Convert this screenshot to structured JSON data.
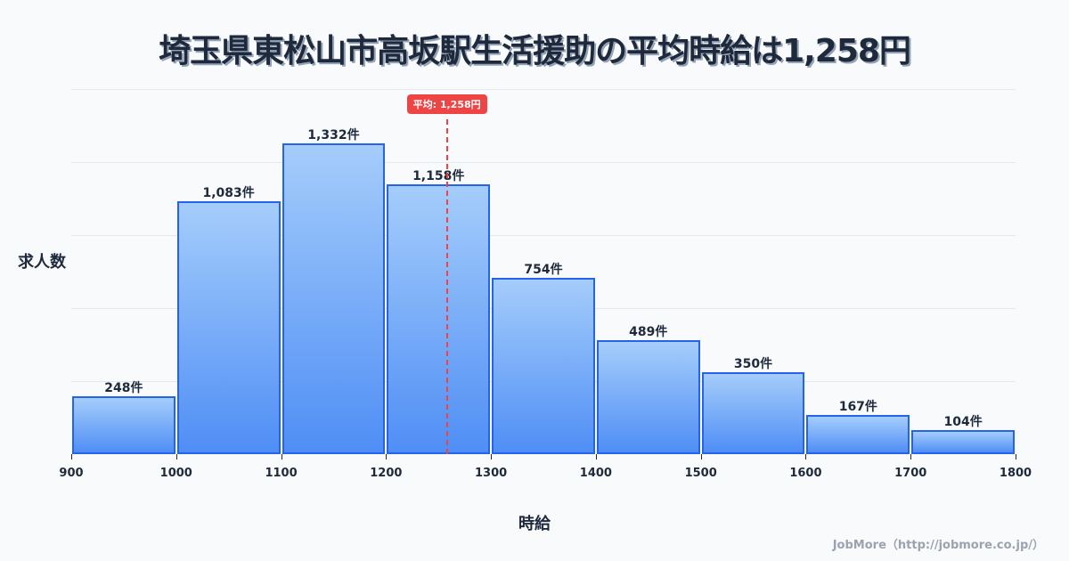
{
  "title": "埼玉県東松山市高坂駅生活援助の平均時給は1,258円",
  "ylabel": "求人数",
  "xlabel": "時給",
  "credit": "JobMore（http://jobmore.co.jp/）",
  "average": {
    "label": "平均: 1,258円",
    "value": 1258
  },
  "colors": {
    "bar_border": "#2563eb",
    "bar_top": "#a5cdfb",
    "bar_bottom": "#4f8ef5",
    "average": "#ef4444",
    "text": "#1e293b"
  },
  "chart_data": {
    "type": "bar",
    "title": "埼玉県東松山市高坂駅生活援助の平均時給は1,258円",
    "xlabel": "時給",
    "ylabel": "求人数",
    "bins": [
      [
        900,
        1000
      ],
      [
        1000,
        1100
      ],
      [
        1100,
        1200
      ],
      [
        1200,
        1300
      ],
      [
        1300,
        1400
      ],
      [
        1400,
        1500
      ],
      [
        1500,
        1600
      ],
      [
        1600,
        1700
      ],
      [
        1700,
        1800
      ]
    ],
    "categories": [
      "900-1000",
      "1000-1100",
      "1100-1200",
      "1200-1300",
      "1300-1400",
      "1400-1500",
      "1500-1600",
      "1600-1700",
      "1700-1800"
    ],
    "values": [
      248,
      1083,
      1332,
      1158,
      754,
      489,
      350,
      167,
      104
    ],
    "value_labels": [
      "248件",
      "1,083件",
      "1,332件",
      "1,158件",
      "754件",
      "489件",
      "350件",
      "167件",
      "104件"
    ],
    "x_ticks": [
      "900",
      "1000",
      "1100",
      "1200",
      "1300",
      "1400",
      "1500",
      "1600",
      "1700",
      "1800"
    ],
    "xlim": [
      900,
      1800
    ],
    "ylim": [
      0,
      1565
    ],
    "grid": true,
    "annotations": [
      {
        "type": "vline",
        "x": 1258,
        "label": "平均: 1,258円",
        "color": "#ef4444",
        "style": "dashed"
      }
    ]
  }
}
